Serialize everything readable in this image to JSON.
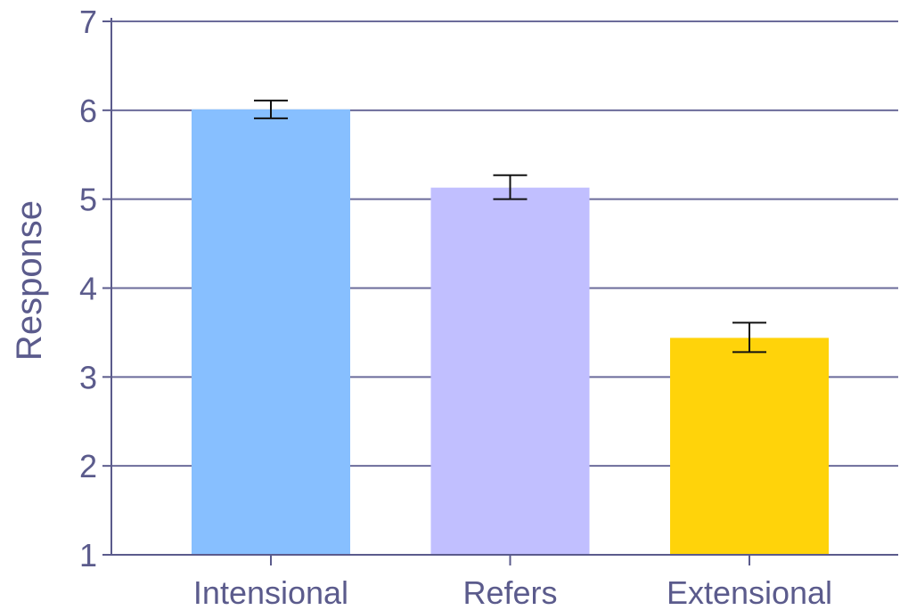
{
  "chart_data": {
    "type": "bar",
    "title": "",
    "xlabel": "",
    "ylabel": "Response",
    "ylim": [
      1,
      7
    ],
    "yticks": [
      "1",
      "2",
      "3",
      "4",
      "5",
      "6",
      "7"
    ],
    "grid": true,
    "categories": [
      "Intensional",
      "Refers",
      "Extensional"
    ],
    "values": [
      6.01,
      5.13,
      3.44
    ],
    "error_low": [
      5.91,
      5.0,
      3.28
    ],
    "error_high": [
      6.11,
      5.27,
      3.61
    ],
    "colors": [
      "#87bfff",
      "#c1bfff",
      "#ffd30a"
    ]
  }
}
